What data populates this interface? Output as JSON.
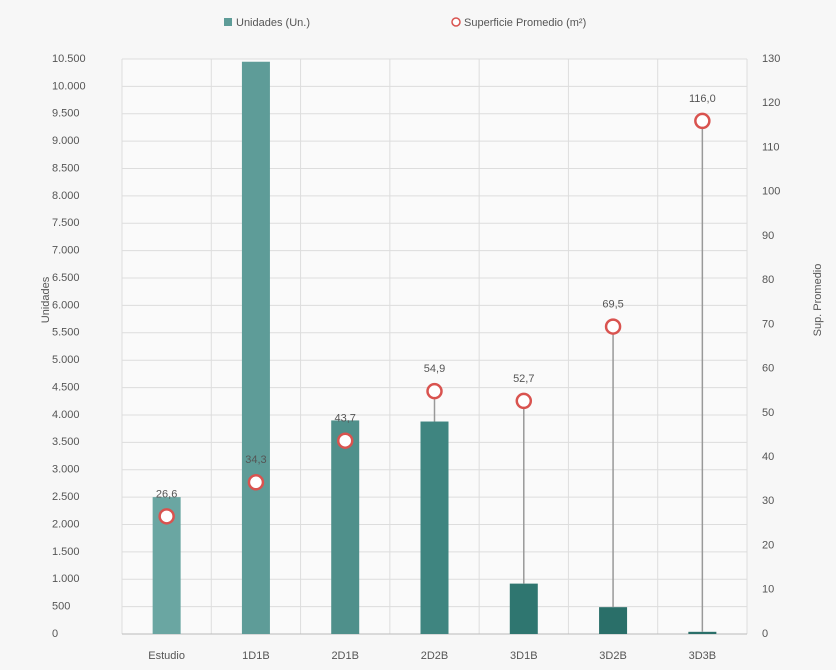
{
  "chart_data": {
    "type": "bar-scatter",
    "categories": [
      "Estudio",
      "1D1B",
      "2D1B",
      "2D2B",
      "3D1B",
      "3D2B",
      "3D3B"
    ],
    "y_label": "Unidades",
    "y2_label": "Sup. Promedio",
    "series": [
      {
        "name": "Unidades (Un.)",
        "color": "#5e9c98",
        "colors": [
          "#6aa6a2",
          "#5e9c98",
          "#4f908b",
          "#3f8580",
          "#2f7670",
          "#2a6f69",
          "#2a6f69"
        ],
        "values": [
          2500,
          10450,
          3900,
          3880,
          920,
          490,
          40
        ]
      },
      {
        "name": "Superficie Promedio (m²)",
        "color": "#d9534f",
        "axis": "y2",
        "values": [
          26.6,
          34.3,
          43.7,
          54.9,
          52.7,
          69.5,
          116.0
        ],
        "value_labels": [
          "26,6",
          "34,3",
          "43,7",
          "54,9",
          "52,7",
          "69,5",
          "116,0"
        ]
      }
    ],
    "ylim": [
      0,
      10500
    ],
    "yticks": [
      0,
      500,
      {
        "value": 1000,
        "label": "1.000"
      },
      {
        "value": 1500,
        "label": "1.500"
      },
      {
        "value": 2000,
        "label": "2.000"
      },
      {
        "value": 2500,
        "label": "2.500"
      },
      {
        "value": 3000,
        "label": "3.000"
      },
      {
        "value": 3500,
        "label": "3.500"
      },
      {
        "value": 4000,
        "label": "4.000"
      },
      {
        "value": 4500,
        "label": "4.500"
      },
      {
        "value": 5000,
        "label": "5.000"
      },
      {
        "value": 5500,
        "label": "5.500"
      },
      {
        "value": 6000,
        "label": "6.000"
      },
      {
        "value": 6500,
        "label": "6.500"
      },
      {
        "value": 7000,
        "label": "7.000"
      },
      {
        "value": 7500,
        "label": "7.500"
      },
      {
        "value": 8000,
        "label": "8.000"
      },
      {
        "value": 8500,
        "label": "8.500"
      },
      {
        "value": 9000,
        "label": "9.000"
      },
      {
        "value": 9500,
        "label": "9.500"
      },
      {
        "value": 10000,
        "label": "10.000"
      },
      {
        "value": 10500,
        "label": "10.500"
      }
    ],
    "y2lim": [
      0,
      130
    ],
    "y2ticks": [
      0,
      10,
      20,
      30,
      40,
      50,
      60,
      70,
      80,
      90,
      100,
      110,
      120,
      130
    ],
    "grid": true
  }
}
